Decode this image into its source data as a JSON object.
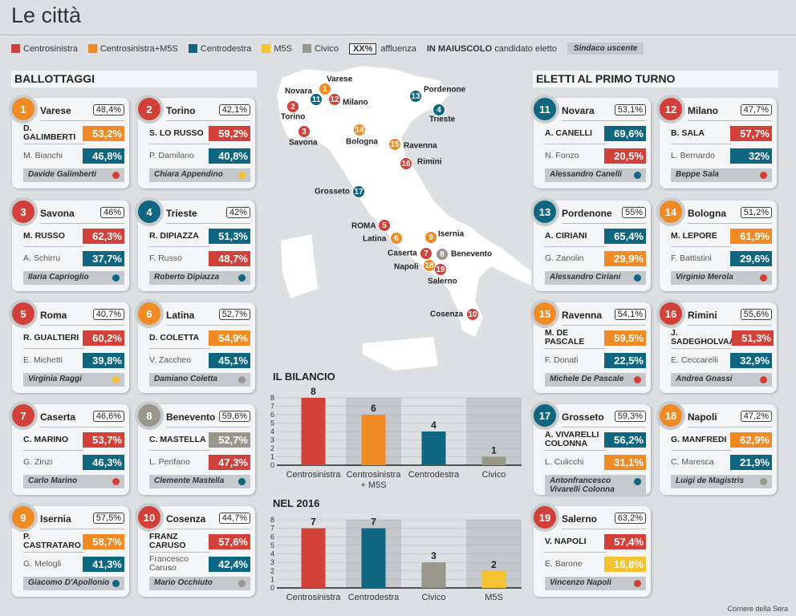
{
  "title": "Le città",
  "colors": {
    "red": "#d2403a",
    "orange": "#f08a24",
    "blue": "#0e6680",
    "yellow": "#f5c232",
    "grey": "#9a978a"
  },
  "legend": {
    "items": [
      {
        "label": "Centrosinistra",
        "color": "red"
      },
      {
        "label": "Centrosinistra+M5S",
        "color": "orange"
      },
      {
        "label": "Centrodestra",
        "color": "blue"
      },
      {
        "label": "M5S",
        "color": "yellow"
      },
      {
        "label": "Civico",
        "color": "grey"
      }
    ],
    "turnout_sample": "XX%",
    "turnout_label": "affluenza",
    "caps_label": "IN MAIUSCOLO",
    "caps_desc": "candidato eletto",
    "outgoing_label": "Sindaco uscente"
  },
  "ballottaggi": {
    "heading": "BALLOTTAGGI",
    "cards": [
      {
        "n": "1",
        "city": "Varese",
        "turnout": "48,4%",
        "color": "orange",
        "winner": "D. GALIMBERTI",
        "wpct": "53,2%",
        "wcolor": "orange",
        "loser": "M. Bianchi",
        "lpct": "46,8%",
        "lcolor": "blue",
        "outgoing": "Davide Galimberti",
        "ocolor": "red"
      },
      {
        "n": "2",
        "city": "Torino",
        "turnout": "42,1%",
        "color": "red",
        "winner": "S. LO RUSSO",
        "wpct": "59,2%",
        "wcolor": "red",
        "loser": "P. Damilano",
        "lpct": "40,8%",
        "lcolor": "blue",
        "outgoing": "Chiara Appendino",
        "ocolor": "yellow"
      },
      {
        "n": "3",
        "city": "Savona",
        "turnout": "46%",
        "color": "red",
        "winner": "M. RUSSO",
        "wpct": "62,3%",
        "wcolor": "red",
        "loser": "A. Schirru",
        "lpct": "37,7%",
        "lcolor": "blue",
        "outgoing": "Ilaria Caprioglio",
        "ocolor": "blue"
      },
      {
        "n": "4",
        "city": "Trieste",
        "turnout": "42%",
        "color": "blue",
        "winner": "R. DIPIAZZA",
        "wpct": "51,3%",
        "wcolor": "blue",
        "loser": "F. Russo",
        "lpct": "48,7%",
        "lcolor": "red",
        "outgoing": "Roberto Dipiazza",
        "ocolor": "blue"
      },
      {
        "n": "5",
        "city": "Roma",
        "turnout": "40,7%",
        "color": "red",
        "winner": "R. GUALTIERI",
        "wpct": "60,2%",
        "wcolor": "red",
        "loser": "E. Michetti",
        "lpct": "39,8%",
        "lcolor": "blue",
        "outgoing": "Virginia Raggi",
        "ocolor": "yellow"
      },
      {
        "n": "6",
        "city": "Latina",
        "turnout": "52,7%",
        "color": "orange",
        "winner": "D. COLETTA",
        "wpct": "54,9%",
        "wcolor": "orange",
        "loser": "V. Zaccheo",
        "lpct": "45,1%",
        "lcolor": "blue",
        "outgoing": "Damiano Coletta",
        "ocolor": "grey"
      },
      {
        "n": "7",
        "city": "Caserta",
        "turnout": "46,6%",
        "color": "red",
        "winner": "C. MARINO",
        "wpct": "53,7%",
        "wcolor": "red",
        "loser": "G. Zinzi",
        "lpct": "46,3%",
        "lcolor": "blue",
        "outgoing": "Carlo Marino",
        "ocolor": "red"
      },
      {
        "n": "8",
        "city": "Benevento",
        "turnout": "59,6%",
        "color": "grey",
        "winner": "C. MASTELLA",
        "wpct": "52,7%",
        "wcolor": "grey",
        "loser": "L. Perifano",
        "lpct": "47,3%",
        "lcolor": "red",
        "outgoing": "Clemente Mastella",
        "ocolor": "blue"
      },
      {
        "n": "9",
        "city": "Isernia",
        "turnout": "57,5%",
        "color": "orange",
        "winner": "P. CASTRATARO",
        "wpct": "58,7%",
        "wcolor": "orange",
        "loser": "G. Melogli",
        "lpct": "41,3%",
        "lcolor": "blue",
        "outgoing": "Giacomo D'Apollonio",
        "ocolor": "blue"
      },
      {
        "n": "10",
        "city": "Cosenza",
        "turnout": "44,7%",
        "color": "red",
        "winner": "FRANZ CARUSO",
        "wpct": "57,6%",
        "wcolor": "red",
        "loser": "Francesco Caruso",
        "lpct": "42,4%",
        "lcolor": "blue",
        "outgoing": "Mario Occhiuto",
        "ocolor": "grey"
      }
    ]
  },
  "primo_turno": {
    "heading": "ELETTI AL PRIMO TURNO",
    "cards": [
      {
        "n": "11",
        "city": "Novara",
        "turnout": "53,1%",
        "color": "blue",
        "winner": "A. CANELLI",
        "wpct": "69,6%",
        "wcolor": "blue",
        "loser": "N. Fonzo",
        "lpct": "20,5%",
        "lcolor": "red",
        "outgoing": "Alessandro Canelli",
        "ocolor": "blue"
      },
      {
        "n": "12",
        "city": "Milano",
        "turnout": "47,7%",
        "color": "red",
        "winner": "B. SALA",
        "wpct": "57,7%",
        "wcolor": "red",
        "loser": "L. Bernardo",
        "lpct": "32%",
        "lcolor": "blue",
        "outgoing": "Beppe Sala",
        "ocolor": "red"
      },
      {
        "n": "13",
        "city": "Pordenone",
        "turnout": "55%",
        "color": "blue",
        "winner": "A. CIRIANI",
        "wpct": "65,4%",
        "wcolor": "blue",
        "loser": "G. Zanolin",
        "lpct": "29,9%",
        "lcolor": "orange",
        "outgoing": "Alessandro Ciriani",
        "ocolor": "blue"
      },
      {
        "n": "14",
        "city": "Bologna",
        "turnout": "51,2%",
        "color": "orange",
        "winner": "M. LEPORE",
        "wpct": "61,9%",
        "wcolor": "orange",
        "loser": "F. Battistini",
        "lpct": "29,6%",
        "lcolor": "blue",
        "outgoing": "Virginio Merola",
        "ocolor": "red"
      },
      {
        "n": "15",
        "city": "Ravenna",
        "turnout": "54,1%",
        "color": "orange",
        "winner": "M. DE PASCALE",
        "wpct": "59,5%",
        "wcolor": "orange",
        "loser": "F. Donati",
        "lpct": "22,5%",
        "lcolor": "blue",
        "outgoing": "Michele De Pascale",
        "ocolor": "red"
      },
      {
        "n": "16",
        "city": "Rimini",
        "turnout": "55,6%",
        "color": "red",
        "winner": "J. SADEGHOLVAAD",
        "wpct": "51,3%",
        "wcolor": "red",
        "loser": "E. Ceccarelli",
        "lpct": "32,9%",
        "lcolor": "blue",
        "outgoing": "Andrea Gnassi",
        "ocolor": "red"
      },
      {
        "n": "17",
        "city": "Grosseto",
        "turnout": "59,3%",
        "color": "blue",
        "winner": "A. VIVARELLI COLONNA",
        "wpct": "56,2%",
        "wcolor": "blue",
        "loser": "L. Culicchi",
        "lpct": "31,1%",
        "lcolor": "orange",
        "outgoing": "Antonfrancesco Vivarelli Colonna",
        "ocolor": "blue"
      },
      {
        "n": "18",
        "city": "Napoli",
        "turnout": "47,2%",
        "color": "orange",
        "winner": "G. MANFREDI",
        "wpct": "62,9%",
        "wcolor": "orange",
        "loser": "C. Maresca",
        "lpct": "21,9%",
        "lcolor": "blue",
        "outgoing": "Luigi de Magistris",
        "ocolor": "grey"
      },
      {
        "n": "19",
        "city": "Salerno",
        "turnout": "63,2%",
        "color": "red",
        "winner": "V. NAPOLI",
        "wpct": "57,4%",
        "wcolor": "red",
        "loser": "E. Barone",
        "lpct": "16,8%",
        "lcolor": "yellow",
        "outgoing": "Vincenzo Napoli",
        "ocolor": "red"
      }
    ]
  },
  "map": {
    "markers": [
      {
        "n": "1",
        "label": "Varese",
        "color": "orange"
      },
      {
        "n": "11",
        "label": "Novara",
        "color": "blue"
      },
      {
        "n": "12",
        "label": "Milano",
        "color": "red"
      },
      {
        "n": "2",
        "label": "Torino",
        "color": "red"
      },
      {
        "n": "3",
        "label": "Savona",
        "color": "red"
      },
      {
        "n": "14",
        "label": "Bologna",
        "color": "orange"
      },
      {
        "n": "15",
        "label": "Ravenna",
        "color": "orange"
      },
      {
        "n": "16",
        "label": "Rimini",
        "color": "red"
      },
      {
        "n": "17",
        "label": "Grosseto",
        "color": "blue"
      },
      {
        "n": "13",
        "label": "Pordenone",
        "color": "blue"
      },
      {
        "n": "4",
        "label": "Trieste",
        "color": "blue"
      },
      {
        "n": "5",
        "label": "ROMA",
        "color": "red"
      },
      {
        "n": "6",
        "label": "Latina",
        "color": "orange"
      },
      {
        "n": "9",
        "label": "Isernia",
        "color": "orange"
      },
      {
        "n": "7",
        "label": "Caserta",
        "color": "red"
      },
      {
        "n": "8",
        "label": "Benevento",
        "color": "grey"
      },
      {
        "n": "18",
        "label": "Napoli",
        "color": "orange"
      },
      {
        "n": "19",
        "label": "Salerno",
        "color": "red"
      },
      {
        "n": "10",
        "label": "Cosenza",
        "color": "red"
      }
    ]
  },
  "chart_data": [
    {
      "type": "bar",
      "title": "IL BILANCIO",
      "categories": [
        "Centrosinistra",
        "Centrosinistra + M5S",
        "Centrodestra",
        "Civico"
      ],
      "values": [
        8,
        6,
        4,
        1
      ],
      "colors": [
        "red",
        "orange",
        "blue",
        "grey"
      ],
      "ylim": [
        0,
        8
      ],
      "yticks": [
        "0",
        "1",
        "2",
        "3",
        "4",
        "5",
        "6",
        "7",
        "8"
      ],
      "grid": true
    },
    {
      "type": "bar",
      "title": "NEL 2016",
      "categories": [
        "Centrosinistra",
        "Centrodestra",
        "Civico",
        "M5S"
      ],
      "values": [
        7,
        7,
        3,
        2
      ],
      "colors": [
        "red",
        "blue",
        "grey",
        "yellow"
      ],
      "ylim": [
        0,
        8
      ],
      "yticks": [
        "0",
        "1",
        "2",
        "3",
        "4",
        "5",
        "6",
        "7",
        "8"
      ],
      "grid": true
    }
  ],
  "credit": "Corriere della Sera"
}
